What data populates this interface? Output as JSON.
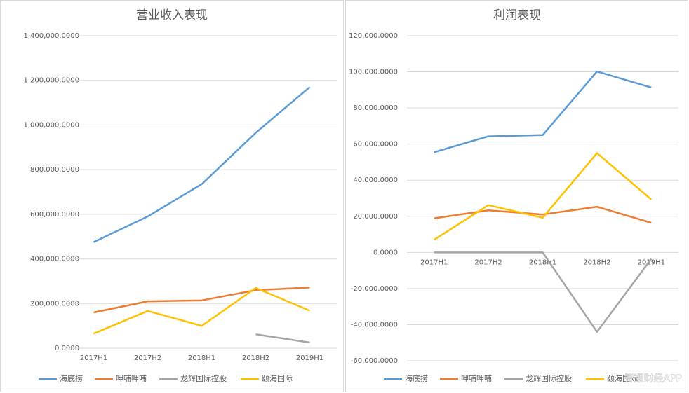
{
  "chart_data": [
    {
      "type": "line",
      "title": "营业收入表现",
      "categories": [
        "2017H1",
        "2017H2",
        "2018H1",
        "2018H2",
        "2019H1"
      ],
      "ylim": [
        0,
        1400000
      ],
      "yticks": [
        {
          "value": 0,
          "label": "0.0000"
        },
        {
          "value": 200000,
          "label": "200,000.0000"
        },
        {
          "value": 400000,
          "label": "400,000.0000"
        },
        {
          "value": 600000,
          "label": "600,000.0000"
        },
        {
          "value": 800000,
          "label": "800,000.0000"
        },
        {
          "value": 1000000,
          "label": "1,000,000.0000"
        },
        {
          "value": 1200000,
          "label": "1,200,000.0000"
        },
        {
          "value": 1400000,
          "label": "1,400,000.0000"
        }
      ],
      "grid": true,
      "series": [
        {
          "name": "海底捞",
          "color": "#5b9bd5",
          "values": [
            475000,
            590000,
            735000,
            965000,
            1170000
          ]
        },
        {
          "name": "呷哺呷哺",
          "color": "#ed7d31",
          "values": [
            160000,
            210000,
            214000,
            260000,
            272000
          ]
        },
        {
          "name": "龙辉国际控股",
          "color": "#a5a5a5",
          "values": [
            null,
            null,
            null,
            62000,
            25000
          ]
        },
        {
          "name": "颐海国际",
          "color": "#ffc000",
          "values": [
            65000,
            167000,
            100000,
            270000,
            168000
          ]
        }
      ]
    },
    {
      "type": "line",
      "title": "利润表现",
      "categories": [
        "2017H1",
        "2017H2",
        "2018H1",
        "2018H2",
        "2019H1"
      ],
      "ylim": [
        -60000,
        120000
      ],
      "yticks": [
        {
          "value": -60000,
          "label": "-60,000.0000"
        },
        {
          "value": -40000,
          "label": "-40,000.0000"
        },
        {
          "value": -20000,
          "label": "-20,000.0000"
        },
        {
          "value": 0,
          "label": "0.0000"
        },
        {
          "value": 20000,
          "label": "20,000.0000"
        },
        {
          "value": 40000,
          "label": "40,000.0000"
        },
        {
          "value": 60000,
          "label": "60,000.0000"
        },
        {
          "value": 80000,
          "label": "80,000.0000"
        },
        {
          "value": 100000,
          "label": "100,000.0000"
        },
        {
          "value": 120000,
          "label": "120,000.0000"
        }
      ],
      "grid": true,
      "series": [
        {
          "name": "海底捞",
          "color": "#5b9bd5",
          "values": [
            55500,
            64300,
            65000,
            100200,
            91300
          ]
        },
        {
          "name": "呷哺呷哺",
          "color": "#ed7d31",
          "values": [
            18900,
            23300,
            21000,
            25300,
            16400
          ]
        },
        {
          "name": "龙辉国际控股",
          "color": "#a5a5a5",
          "values": [
            0,
            0,
            0,
            -44000,
            -3500
          ]
        },
        {
          "name": "颐海国际",
          "color": "#ffc000",
          "values": [
            7000,
            26200,
            19200,
            55000,
            29300
          ]
        }
      ],
      "watermark": "智通财经APP"
    }
  ]
}
